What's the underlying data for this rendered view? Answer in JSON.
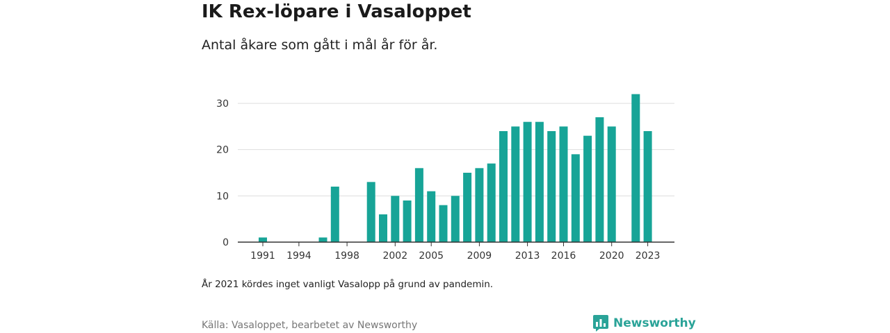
{
  "header": {
    "title": "IK Rex-löpare i Vasaloppet",
    "subtitle": "Antal åkare som gått i mål år för år."
  },
  "footer": {
    "note": "År 2021 kördes inget vanligt Vasalopp på grund av pandemin.",
    "source": "Källa: Vasaloppet, bearbetet av Newsworthy",
    "brand": "Newsworthy",
    "brand_icon": "bar-chart-bubble-icon"
  },
  "colors": {
    "bar": "#17a497",
    "grid": "#dddddd",
    "axis": "#333333",
    "brand": "#2aa398"
  },
  "chart_data": {
    "type": "bar",
    "title": "IK Rex-löpare i Vasaloppet",
    "subtitle": "Antal åkare som gått i mål år för år.",
    "xlabel": "",
    "ylabel": "",
    "ylim": [
      0,
      33
    ],
    "yticks": [
      0,
      10,
      20,
      30
    ],
    "xticks": [
      1991,
      1994,
      1998,
      2002,
      2005,
      2009,
      2013,
      2016,
      2020,
      2023
    ],
    "grid": true,
    "categories": [
      1991,
      1992,
      1993,
      1994,
      1995,
      1996,
      1997,
      1998,
      1999,
      2000,
      2001,
      2002,
      2003,
      2004,
      2005,
      2006,
      2007,
      2008,
      2009,
      2010,
      2011,
      2012,
      2013,
      2014,
      2015,
      2016,
      2017,
      2018,
      2019,
      2020,
      2021,
      2022,
      2023
    ],
    "values": [
      1,
      0,
      0,
      0,
      0,
      1,
      12,
      0,
      0,
      13,
      6,
      10,
      9,
      16,
      11,
      8,
      10,
      15,
      16,
      17,
      24,
      25,
      26,
      26,
      24,
      25,
      19,
      23,
      27,
      25,
      null,
      32,
      24
    ]
  }
}
